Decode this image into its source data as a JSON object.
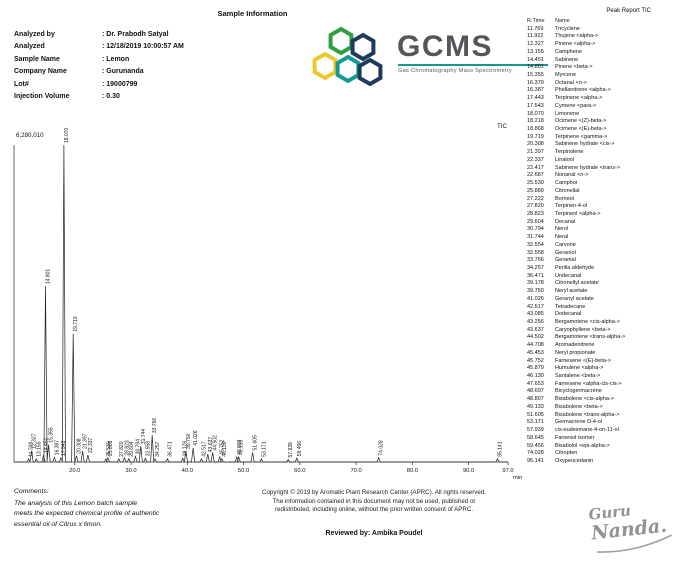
{
  "page": {
    "title": "Sample Information"
  },
  "sample_info": {
    "rows": [
      {
        "label": "Analyzed by",
        "value": ": Dr. Prabodh Satyal"
      },
      {
        "label": "Analyzed",
        "value": ": 12/18/2019 10:00:57 AM"
      },
      {
        "label": "Sample Name",
        "value": ": Lemon"
      },
      {
        "label": "Company Name",
        "value": ": Gurunanda"
      },
      {
        "label": "Lot#",
        "value": ": 19000799"
      },
      {
        "label": "Injection Volume",
        "value": ": 0.30"
      }
    ]
  },
  "logo": {
    "text": "GCMS",
    "tagline": "Gas Chromatography Mass Spectrometry",
    "colors": {
      "green": "#2f9e41",
      "navy": "#1f3b5b",
      "yellow": "#edc72f",
      "teal": "#159a93",
      "gray": "#55565a"
    }
  },
  "peak_report": {
    "title": "Peak Report TIC",
    "columns": [
      "R.Time",
      "Name"
    ],
    "rows": [
      {
        "rtime": "11.769",
        "name": "Tricyclene"
      },
      {
        "rtime": "11.922",
        "name": "Thujene <alpha->"
      },
      {
        "rtime": "12.327",
        "name": "Pinene <alpha->"
      },
      {
        "rtime": "13.155",
        "name": "Camphene"
      },
      {
        "rtime": "14.451",
        "name": "Sabinene"
      },
      {
        "rtime": "14.801",
        "name": "Pinene <beta->"
      },
      {
        "rtime": "15.355",
        "name": "Myrcene"
      },
      {
        "rtime": "16.379",
        "name": "Octanal <n->"
      },
      {
        "rtime": "16.387",
        "name": "Phellandrene <alpha->"
      },
      {
        "rtime": "17.443",
        "name": "Terpinene <alpha->"
      },
      {
        "rtime": "17.543",
        "name": "Cymene <para->"
      },
      {
        "rtime": "18.070",
        "name": "Limonene"
      },
      {
        "rtime": "18.218",
        "name": "Ocimene <(Z)-beta->"
      },
      {
        "rtime": "18.868",
        "name": "Ocimene <(E)-beta->"
      },
      {
        "rtime": "19.719",
        "name": "Terpinene <gamma->"
      },
      {
        "rtime": "20.308",
        "name": "Sabinene hydrate <cis->"
      },
      {
        "rtime": "21.397",
        "name": "Terpinolene"
      },
      {
        "rtime": "22.337",
        "name": "Linalool"
      },
      {
        "rtime": "22.417",
        "name": "Sabinene hydrate <trans->"
      },
      {
        "rtime": "22.687",
        "name": "Nonanal <n->"
      },
      {
        "rtime": "25.530",
        "name": "Camphor"
      },
      {
        "rtime": "25.889",
        "name": "Citronellal"
      },
      {
        "rtime": "27.222",
        "name": "Borneol"
      },
      {
        "rtime": "27.820",
        "name": "Terpinen-4-ol"
      },
      {
        "rtime": "28.823",
        "name": "Terpineol <alpha->"
      },
      {
        "rtime": "29.604",
        "name": "Decanal"
      },
      {
        "rtime": "30.794",
        "name": "Nerol"
      },
      {
        "rtime": "31.744",
        "name": "Neral"
      },
      {
        "rtime": "32.554",
        "name": "Carvone"
      },
      {
        "rtime": "32.558",
        "name": "Geraniol"
      },
      {
        "rtime": "33.766",
        "name": "Geranial"
      },
      {
        "rtime": "34.257",
        "name": "Perilla aldehyde"
      },
      {
        "rtime": "36.471",
        "name": "Undecanal"
      },
      {
        "rtime": "39.178",
        "name": "Citronellyl acetate"
      },
      {
        "rtime": "39.750",
        "name": "Neryl acetate"
      },
      {
        "rtime": "41.026",
        "name": "Geranyl acetate"
      },
      {
        "rtime": "42.517",
        "name": "Tetradecane"
      },
      {
        "rtime": "43.085",
        "name": "Dodecanal"
      },
      {
        "rtime": "43.256",
        "name": "Bergamotene <cis-alpha->"
      },
      {
        "rtime": "43.637",
        "name": "Caryophyllene <beta->"
      },
      {
        "rtime": "44.502",
        "name": "Bergamotene <trans-alpha->"
      },
      {
        "rtime": "44.708",
        "name": "Aromadendrene"
      },
      {
        "rtime": "45.453",
        "name": "Neryl propionate"
      },
      {
        "rtime": "45.752",
        "name": "Farnesene <(E)-beta->"
      },
      {
        "rtime": "45.879",
        "name": "Humulene <alpha->"
      },
      {
        "rtime": "46.130",
        "name": "Santalene <beta->"
      },
      {
        "rtime": "47.653",
        "name": "Farnesene <alpha-cis-cis->"
      },
      {
        "rtime": "48.697",
        "name": "Bicyclogermacrene"
      },
      {
        "rtime": "48.807",
        "name": "Bisabolene <cis-alpha->"
      },
      {
        "rtime": "49.133",
        "name": "Bisabolene <beta->"
      },
      {
        "rtime": "51.605",
        "name": "Bisabolene <trans-alpha->"
      },
      {
        "rtime": "53.171",
        "name": "Germacrene D-4-ol"
      },
      {
        "rtime": "57.939",
        "name": "cis-eudesmane-4-on-11-ol"
      },
      {
        "rtime": "58.645",
        "name": "Farnesol isomer"
      },
      {
        "rtime": "59.456",
        "name": "Bisabolol <epi-alpha->"
      },
      {
        "rtime": "74.028",
        "name": "Citropten"
      },
      {
        "rtime": "95.141",
        "name": "Oxypeucedanin"
      }
    ]
  },
  "chart_data": {
    "type": "line",
    "title": "TIC",
    "ymax": 6280010,
    "ymax_label": "6,280,010",
    "xlabel": "min",
    "x_range": [
      9.2,
      97.0
    ],
    "x_ticks": [
      "20.0",
      "30.0",
      "40.0",
      "50.0",
      "60.0",
      "70.0",
      "80.0",
      "90.0",
      "97.0"
    ],
    "peaks": [
      {
        "rt": 11.769,
        "h": 0.01,
        "label": "11.769"
      },
      {
        "rt": 12.327,
        "h": 0.035,
        "label": "12.327"
      },
      {
        "rt": 13.155,
        "h": 0.01,
        "label": "13.155"
      },
      {
        "rt": 14.451,
        "h": 0.022,
        "label": "14.451"
      },
      {
        "rt": 14.801,
        "h": 0.555,
        "label": "14.801"
      },
      {
        "rt": 15.355,
        "h": 0.055,
        "label": "15.355"
      },
      {
        "rt": 16.387,
        "h": 0.015,
        "label": "16.387"
      },
      {
        "rt": 17.543,
        "h": 0.013,
        "label": "17.543"
      },
      {
        "rt": 18.07,
        "h": 1.0,
        "label": "18.070"
      },
      {
        "rt": 19.719,
        "h": 0.405,
        "label": "19.719"
      },
      {
        "rt": 20.308,
        "h": 0.02,
        "label": "20.308"
      },
      {
        "rt": 21.397,
        "h": 0.035,
        "label": "21.397"
      },
      {
        "rt": 22.337,
        "h": 0.022,
        "label": "22.337"
      },
      {
        "rt": 25.53,
        "h": 0.01,
        "label": "25.530"
      },
      {
        "rt": 25.889,
        "h": 0.013,
        "label": "25.889"
      },
      {
        "rt": 27.82,
        "h": 0.01,
        "label": "27.820"
      },
      {
        "rt": 28.823,
        "h": 0.014,
        "label": "28.823"
      },
      {
        "rt": 29.604,
        "h": 0.01,
        "label": "29.604"
      },
      {
        "rt": 30.794,
        "h": 0.018,
        "label": "30.794"
      },
      {
        "rt": 31.744,
        "h": 0.05,
        "label": "31.744"
      },
      {
        "rt": 32.558,
        "h": 0.012,
        "label": "32.558"
      },
      {
        "rt": 33.766,
        "h": 0.085,
        "label": "33.766"
      },
      {
        "rt": 34.257,
        "h": 0.01,
        "label": "34.257"
      },
      {
        "rt": 36.471,
        "h": 0.01,
        "label": "36.471"
      },
      {
        "rt": 39.178,
        "h": 0.012,
        "label": "39.178"
      },
      {
        "rt": 39.75,
        "h": 0.035,
        "label": "39.750"
      },
      {
        "rt": 41.026,
        "h": 0.045,
        "label": "41.026"
      },
      {
        "rt": 42.517,
        "h": 0.01,
        "label": "42.517"
      },
      {
        "rt": 43.637,
        "h": 0.025,
        "label": "43.637"
      },
      {
        "rt": 44.502,
        "h": 0.03,
        "label": "44.502"
      },
      {
        "rt": 45.752,
        "h": 0.016,
        "label": "45.752"
      },
      {
        "rt": 46.13,
        "h": 0.01,
        "label": "46.130"
      },
      {
        "rt": 48.807,
        "h": 0.016,
        "label": "48.807"
      },
      {
        "rt": 49.133,
        "h": 0.016,
        "label": "49.133"
      },
      {
        "rt": 51.605,
        "h": 0.03,
        "label": "51.605"
      },
      {
        "rt": 53.171,
        "h": 0.01,
        "label": "53.171"
      },
      {
        "rt": 57.939,
        "h": 0.008,
        "label": "57.939"
      },
      {
        "rt": 59.456,
        "h": 0.012,
        "label": "59.456"
      },
      {
        "rt": 74.028,
        "h": 0.014,
        "label": "74.028"
      },
      {
        "rt": 95.141,
        "h": 0.01,
        "label": "95.141"
      }
    ]
  },
  "comments": {
    "title": "Comments:",
    "lines": [
      "The analysis of this Lemon batch sample",
      "meets the expected chemical profile of authentic",
      "essential oil of Citrus x limon."
    ]
  },
  "copyright": {
    "lines": [
      "Copyright © 2019 by Aromatic Plant Research Center (APRC). All rights reserved.",
      "The information contained in this document may not be used, published or",
      "redistributed, including online, without the prior written consent of APRC."
    ]
  },
  "reviewed_by": "Reviewed by: Ambika Poudel",
  "brand": {
    "line1": "Guru",
    "line2": "Nanda."
  }
}
